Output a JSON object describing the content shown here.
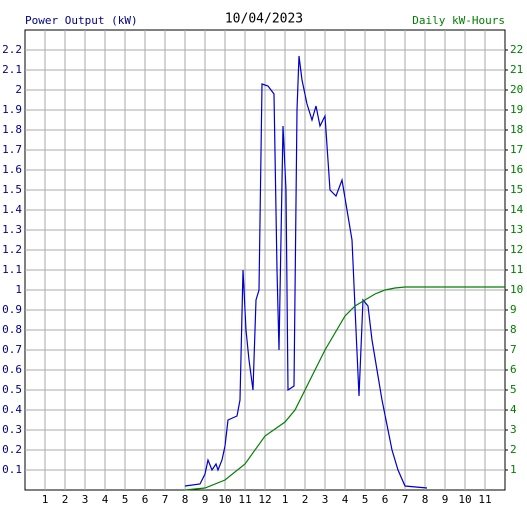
{
  "chart_data": {
    "type": "line",
    "title": "10/04/2023",
    "y_label": "Power Output (kW)",
    "y2_label": "Daily kW-Hours",
    "xlim": [
      0,
      24
    ],
    "xticks": [
      1,
      2,
      3,
      4,
      5,
      6,
      7,
      8,
      9,
      10,
      11,
      12,
      {
        "value": 13,
        "label": "1"
      },
      {
        "value": 14,
        "label": "2"
      },
      {
        "value": 15,
        "label": "3"
      },
      {
        "value": 16,
        "label": "4"
      },
      {
        "value": 17,
        "label": "5"
      },
      {
        "value": 18,
        "label": "6"
      },
      {
        "value": 19,
        "label": "7"
      },
      {
        "value": 20,
        "label": "8"
      },
      {
        "value": 21,
        "label": "9"
      },
      {
        "value": 22,
        "label": "10"
      },
      {
        "value": 23,
        "label": "11"
      }
    ],
    "ylim": [
      0,
      2.3
    ],
    "yticks": [
      0.1,
      0.2,
      0.3,
      0.4,
      0.5,
      0.6,
      0.7,
      0.8,
      0.9,
      1.0,
      1.1,
      1.2,
      1.3,
      1.4,
      1.5,
      1.6,
      1.7,
      1.8,
      1.9,
      2.0,
      2.1,
      2.2
    ],
    "y2lim": [
      0,
      23
    ],
    "y2ticks": [
      1,
      2,
      3,
      4,
      5,
      6,
      7,
      8,
      9,
      10,
      11,
      12,
      13,
      14,
      15,
      16,
      17,
      18,
      19,
      20,
      21,
      22
    ],
    "grid": true,
    "y_color": "#00008b",
    "y2_color": "#008000",
    "series": [
      {
        "name": "Power Output",
        "color": "#0000cc",
        "x": [
          8.0,
          8.75,
          9.0,
          9.15,
          9.35,
          9.55,
          9.65,
          9.85,
          10.0,
          10.15,
          10.6,
          10.75,
          10.9,
          11.05,
          11.2,
          11.4,
          11.55,
          11.7,
          11.85,
          12.15,
          12.45,
          12.6,
          12.7,
          12.9,
          13.05,
          13.15,
          13.45,
          13.6,
          13.7,
          13.85,
          14.1,
          14.35,
          14.55,
          14.75,
          15.0,
          15.25,
          15.55,
          15.85,
          16.1,
          16.35,
          16.55,
          16.7,
          16.9,
          17.15,
          17.35,
          17.6,
          17.85,
          18.05,
          18.35,
          18.65,
          19.0,
          20.1
        ],
        "values": [
          0.02,
          0.03,
          0.08,
          0.15,
          0.1,
          0.13,
          0.1,
          0.15,
          0.22,
          0.35,
          0.37,
          0.45,
          1.1,
          0.8,
          0.65,
          0.5,
          0.95,
          1.0,
          2.03,
          2.02,
          1.98,
          1.1,
          0.7,
          1.82,
          1.5,
          0.5,
          0.52,
          1.9,
          2.17,
          2.05,
          1.93,
          1.85,
          1.92,
          1.82,
          1.87,
          1.5,
          1.47,
          1.55,
          1.4,
          1.25,
          0.8,
          0.47,
          0.95,
          0.92,
          0.75,
          0.6,
          0.45,
          0.35,
          0.2,
          0.1,
          0.02,
          0.01
        ]
      },
      {
        "name": "Daily kWh",
        "color": "#008000",
        "axis": "y2",
        "x": [
          8.0,
          9.0,
          10.0,
          11.0,
          12.0,
          13.0,
          13.5,
          14.0,
          15.0,
          16.0,
          16.5,
          17.0,
          17.5,
          18.0,
          18.5,
          19.0,
          24.0
        ],
        "values": [
          0,
          0.1,
          0.5,
          1.3,
          2.7,
          3.4,
          4.0,
          5.0,
          7.0,
          8.7,
          9.2,
          9.5,
          9.8,
          10.0,
          10.1,
          10.15,
          10.15
        ]
      }
    ]
  }
}
